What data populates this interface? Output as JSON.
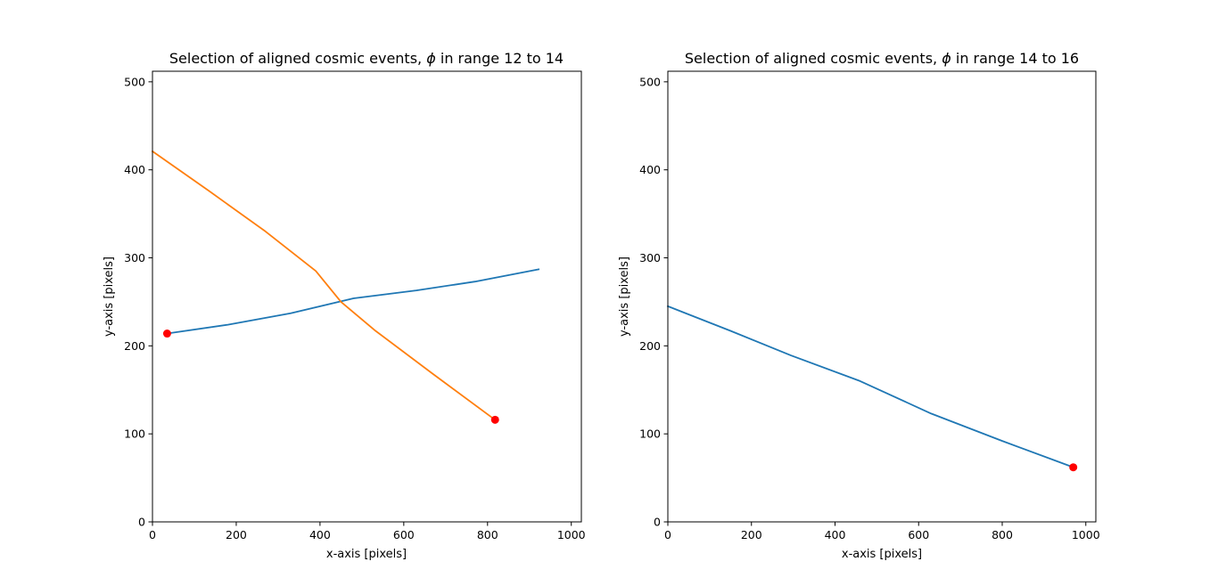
{
  "chart_data": [
    {
      "type": "line",
      "title_text": "Selection of aligned cosmic events, ",
      "title_symbol": "ϕ",
      "title_suffix": " in range 12 to 14",
      "xlabel": "x-axis [pixels]",
      "ylabel": "y-axis [pixels]",
      "xlim": [
        0,
        1024
      ],
      "ylim": [
        0,
        512
      ],
      "xticks": [
        0,
        200,
        400,
        600,
        800,
        1000
      ],
      "yticks": [
        0,
        100,
        200,
        300,
        400,
        500
      ],
      "grid": false,
      "series": [
        {
          "color": "#1f77b4",
          "x": [
            35,
            180,
            330,
            480,
            630,
            770,
            922
          ],
          "y": [
            214,
            224,
            237,
            254,
            263,
            273,
            287
          ]
        },
        {
          "color": "#ff7f0e",
          "x": [
            0,
            135,
            270,
            390,
            450,
            530,
            670,
            818
          ],
          "y": [
            421,
            376,
            330,
            285,
            250,
            218,
            168,
            116
          ]
        }
      ],
      "markers": [
        {
          "x": 35,
          "y": 214,
          "color": "#ff0000"
        },
        {
          "x": 818,
          "y": 116,
          "color": "#ff0000"
        }
      ]
    },
    {
      "type": "line",
      "title_text": "Selection of aligned cosmic events, ",
      "title_symbol": "ϕ",
      "title_suffix": " in range 14 to 16",
      "xlabel": "x-axis [pixels]",
      "ylabel": "y-axis [pixels]",
      "xlim": [
        0,
        1024
      ],
      "ylim": [
        0,
        512
      ],
      "xticks": [
        0,
        200,
        400,
        600,
        800,
        1000
      ],
      "yticks": [
        0,
        100,
        200,
        300,
        400,
        500
      ],
      "grid": false,
      "series": [
        {
          "color": "#1f77b4",
          "x": [
            0,
            150,
            295,
            460,
            630,
            800,
            970
          ],
          "y": [
            245,
            217,
            189,
            160,
            123,
            92,
            62
          ]
        }
      ],
      "markers": [
        {
          "x": 970,
          "y": 62,
          "color": "#ff0000"
        }
      ]
    }
  ]
}
